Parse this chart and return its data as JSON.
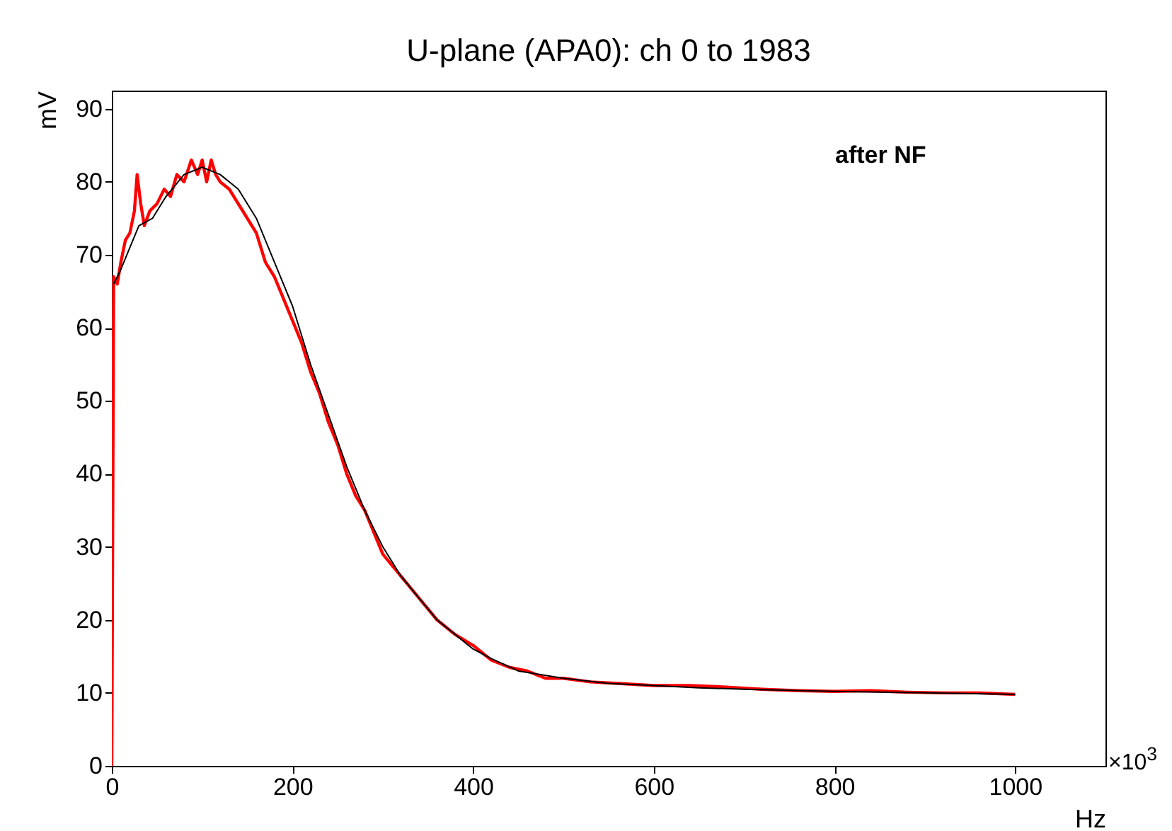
{
  "chart_data": {
    "type": "line",
    "title": "U-plane (APA0): ch 0 to 1983",
    "xlabel": "Hz",
    "ylabel": "mV",
    "annotations": [
      "after NF",
      "×10$^{3}$"
    ],
    "xlim": [
      0,
      1100
    ],
    "ylim": [
      0,
      92.5
    ],
    "xticks": [
      0,
      200,
      400,
      600,
      800,
      1000
    ],
    "yticks": [
      0,
      10,
      20,
      30,
      40,
      50,
      60,
      70,
      80,
      90
    ],
    "series": [
      {
        "color": "#ff0000",
        "x": [
          0,
          2,
          6,
          10,
          15,
          20,
          25,
          28,
          32,
          36,
          42,
          50,
          58,
          65,
          72,
          80,
          88,
          95,
          100,
          105,
          110,
          115,
          120,
          130,
          140,
          150,
          160,
          170,
          180,
          190,
          200,
          210,
          220,
          230,
          240,
          250,
          260,
          270,
          280,
          290,
          300,
          320,
          340,
          360,
          380,
          400,
          420,
          440,
          460,
          480,
          500,
          530,
          560,
          600,
          640,
          680,
          720,
          760,
          800,
          840,
          880,
          920,
          960,
          1000
        ],
        "values": [
          0,
          67,
          66,
          69,
          72,
          73,
          76,
          81,
          77,
          74,
          76,
          77,
          79,
          78,
          81,
          80,
          83,
          81,
          83,
          80,
          83,
          81,
          80,
          79,
          77,
          75,
          73,
          69,
          67,
          64,
          61,
          58,
          54,
          51,
          47,
          44,
          40,
          37,
          35,
          32,
          29,
          26,
          23,
          20,
          18,
          16.5,
          14.5,
          13.5,
          13,
          12,
          12,
          11.5,
          11.3,
          11,
          11,
          10.8,
          10.5,
          10.3,
          10.2,
          10.3,
          10.1,
          10,
          10,
          9.8
        ]
      },
      {
        "color": "#000000",
        "x": [
          2,
          10,
          20,
          30,
          45,
          60,
          80,
          100,
          120,
          140,
          160,
          180,
          200,
          220,
          240,
          260,
          280,
          300,
          320,
          340,
          360,
          380,
          400,
          420,
          450,
          500,
          550,
          600,
          650,
          700,
          800,
          900,
          1000
        ],
        "values": [
          66,
          68,
          71,
          74,
          75,
          78,
          81,
          82,
          81,
          79,
          75,
          69,
          63,
          55,
          48,
          41,
          35,
          30,
          26,
          23,
          20,
          18,
          16,
          14.7,
          13,
          12,
          11.3,
          11,
          10.7,
          10.5,
          10.2,
          10,
          9.8
        ]
      }
    ]
  }
}
